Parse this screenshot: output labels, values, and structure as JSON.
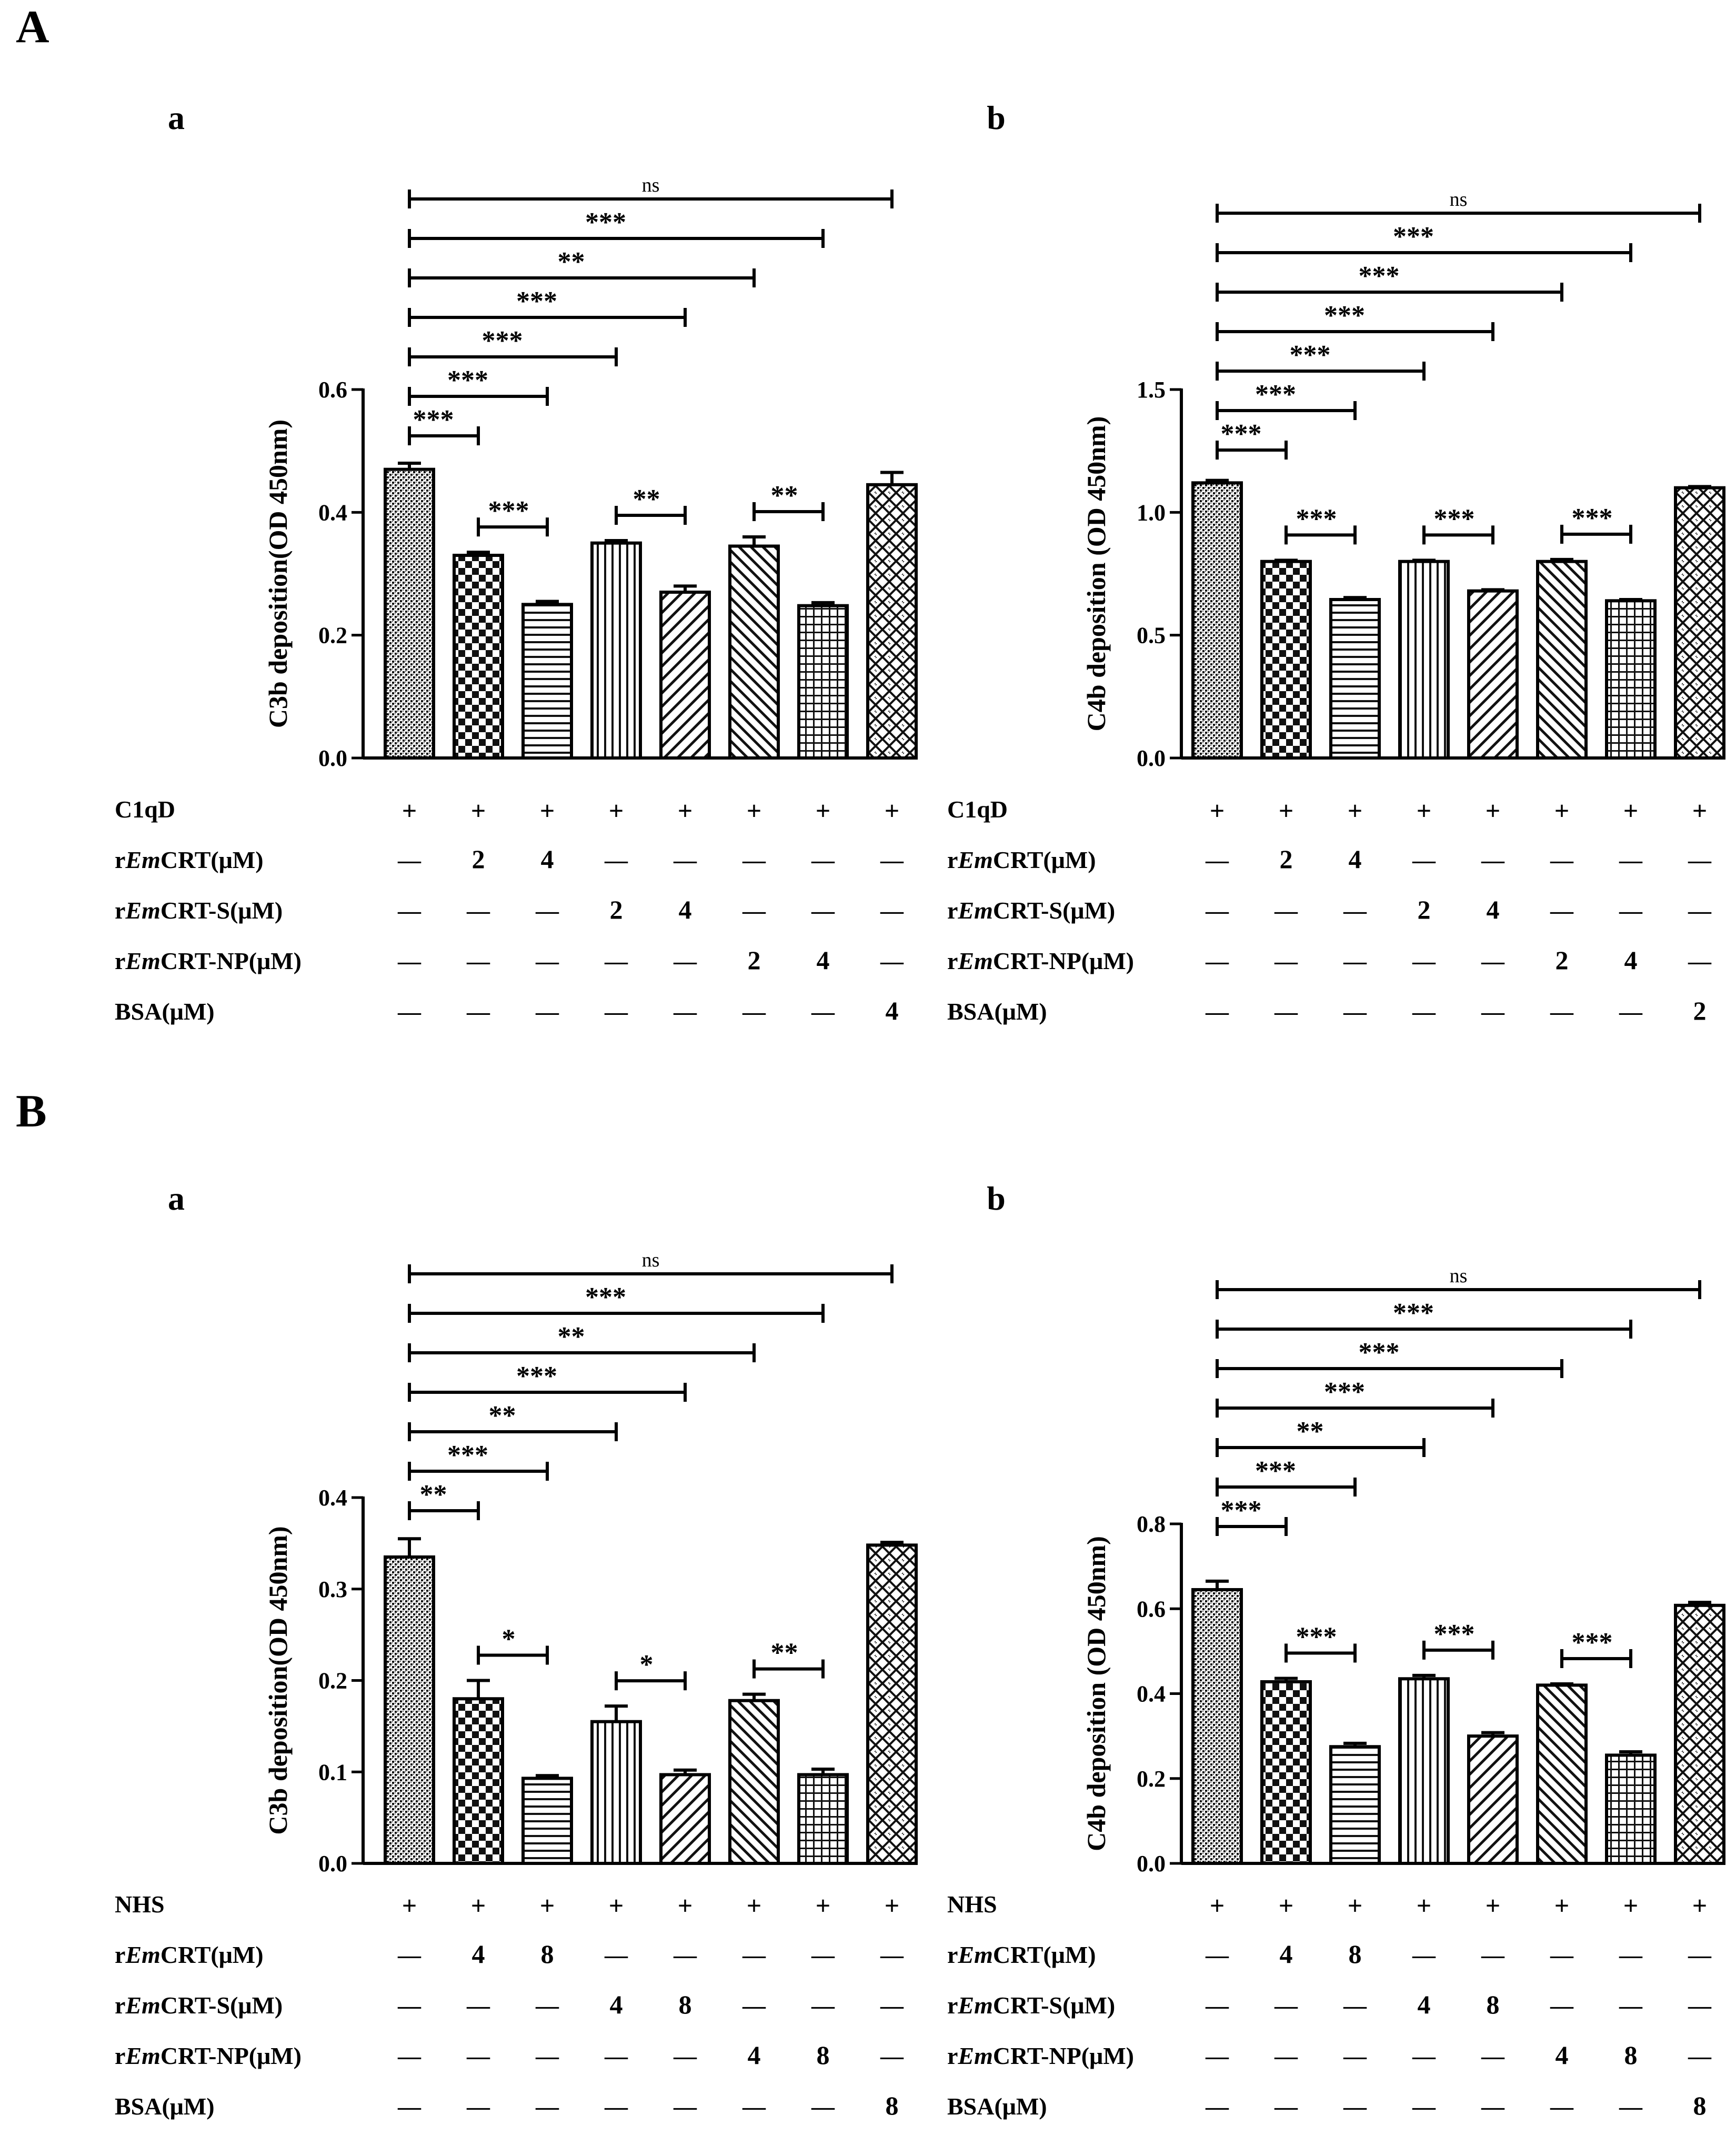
{
  "labels": {
    "A": "A",
    "B": "B",
    "a": "a",
    "b": "b",
    "plus": "+",
    "dash": "—"
  },
  "patterns": [
    "dots",
    "checker",
    "hlines",
    "vlines",
    "diag",
    "backdiag",
    "grid",
    "zigzag"
  ],
  "chart_data": [
    {
      "id": "Aa",
      "type": "bar",
      "panel": "A",
      "sub": "a",
      "ylabel": "C3b deposition(OD 450nm)",
      "ylim": [
        0,
        0.6
      ],
      "yticks": [
        "0.0",
        "0.2",
        "0.4",
        "0.6"
      ],
      "ytick_values": [
        0,
        0.2,
        0.4,
        0.6
      ],
      "values": [
        0.47,
        0.33,
        0.25,
        0.35,
        0.27,
        0.345,
        0.248,
        0.445
      ],
      "errors": [
        0.01,
        0.005,
        0.005,
        0.004,
        0.01,
        0.015,
        0.005,
        0.02
      ],
      "brackets": [
        {
          "from": 0,
          "to": 1,
          "label": "***"
        },
        {
          "from": 0,
          "to": 2,
          "label": "***"
        },
        {
          "from": 0,
          "to": 3,
          "label": "***"
        },
        {
          "from": 0,
          "to": 4,
          "label": "***"
        },
        {
          "from": 0,
          "to": 5,
          "label": "**"
        },
        {
          "from": 0,
          "to": 6,
          "label": "***"
        },
        {
          "from": 0,
          "to": 7,
          "label": "ns"
        }
      ],
      "pair_brackets": [
        {
          "from": 1,
          "to": 2,
          "label": "***"
        },
        {
          "from": 3,
          "to": 4,
          "label": "**"
        },
        {
          "from": 5,
          "to": 6,
          "label": "**"
        }
      ],
      "conditions": [
        {
          "label": "C1qD",
          "italic": "",
          "rest": "",
          "cells": [
            "+",
            "+",
            "+",
            "+",
            "+",
            "+",
            "+",
            "+"
          ]
        },
        {
          "label": "r",
          "italic": "Em",
          "rest": "CRT(μM)",
          "cells": [
            "—",
            "2",
            "4",
            "—",
            "—",
            "—",
            "—",
            "—"
          ]
        },
        {
          "label": "r",
          "italic": "Em",
          "rest": "CRT-S(μM)",
          "cells": [
            "—",
            "—",
            "—",
            "2",
            "4",
            "—",
            "—",
            "—"
          ]
        },
        {
          "label": "r",
          "italic": "Em",
          "rest": "CRT-NP(μM)",
          "cells": [
            "—",
            "—",
            "—",
            "—",
            "—",
            "2",
            "4",
            "—"
          ]
        },
        {
          "label": "BSA(μM)",
          "italic": "",
          "rest": "",
          "cells": [
            "—",
            "—",
            "—",
            "—",
            "—",
            "—",
            "—",
            "4"
          ]
        }
      ]
    },
    {
      "id": "Ab",
      "type": "bar",
      "panel": "",
      "sub": "b",
      "ylabel": "C4b deposition (OD 450nm)",
      "ylim": [
        0,
        1.5
      ],
      "yticks": [
        "0.0",
        "0.5",
        "1.0",
        "1.5"
      ],
      "ytick_values": [
        0,
        0.5,
        1.0,
        1.5
      ],
      "values": [
        1.12,
        0.8,
        0.645,
        0.8,
        0.68,
        0.8,
        0.64,
        1.1
      ],
      "errors": [
        0.01,
        0.005,
        0.008,
        0.005,
        0.005,
        0.008,
        0.005,
        0.005
      ],
      "brackets": [
        {
          "from": 0,
          "to": 1,
          "label": "***"
        },
        {
          "from": 0,
          "to": 2,
          "label": "***"
        },
        {
          "from": 0,
          "to": 3,
          "label": "***"
        },
        {
          "from": 0,
          "to": 4,
          "label": "***"
        },
        {
          "from": 0,
          "to": 5,
          "label": "***"
        },
        {
          "from": 0,
          "to": 6,
          "label": "***"
        },
        {
          "from": 0,
          "to": 7,
          "label": "ns"
        }
      ],
      "pair_brackets": [
        {
          "from": 1,
          "to": 2,
          "label": "***"
        },
        {
          "from": 3,
          "to": 4,
          "label": "***"
        },
        {
          "from": 5,
          "to": 6,
          "label": "***"
        }
      ],
      "conditions": [
        {
          "label": "C1qD",
          "italic": "",
          "rest": "",
          "cells": [
            "+",
            "+",
            "+",
            "+",
            "+",
            "+",
            "+",
            "+"
          ]
        },
        {
          "label": "r",
          "italic": "Em",
          "rest": "CRT(μM)",
          "cells": [
            "—",
            "2",
            "4",
            "—",
            "—",
            "—",
            "—",
            "—"
          ]
        },
        {
          "label": "r",
          "italic": "Em",
          "rest": "CRT-S(μM)",
          "cells": [
            "—",
            "—",
            "—",
            "2",
            "4",
            "—",
            "—",
            "—"
          ]
        },
        {
          "label": "r",
          "italic": "Em",
          "rest": "CRT-NP(μM)",
          "cells": [
            "—",
            "—",
            "—",
            "—",
            "—",
            "2",
            "4",
            "—"
          ]
        },
        {
          "label": "BSA(μM)",
          "italic": "",
          "rest": "",
          "cells": [
            "—",
            "—",
            "—",
            "—",
            "—",
            "—",
            "—",
            "2"
          ]
        }
      ]
    },
    {
      "id": "Ba",
      "type": "bar",
      "panel": "B",
      "sub": "a",
      "ylabel": "C3b deposition(OD 450nm)",
      "ylim": [
        0,
        0.4
      ],
      "yticks": [
        "0.0",
        "0.1",
        "0.2",
        "0.3",
        "0.4"
      ],
      "ytick_values": [
        0,
        0.1,
        0.2,
        0.3,
        0.4
      ],
      "values": [
        0.335,
        0.18,
        0.093,
        0.155,
        0.097,
        0.178,
        0.097,
        0.348
      ],
      "errors": [
        0.02,
        0.02,
        0.003,
        0.017,
        0.005,
        0.007,
        0.006,
        0.003
      ],
      "brackets": [
        {
          "from": 0,
          "to": 1,
          "label": "**"
        },
        {
          "from": 0,
          "to": 2,
          "label": "***"
        },
        {
          "from": 0,
          "to": 3,
          "label": "**"
        },
        {
          "from": 0,
          "to": 4,
          "label": "***"
        },
        {
          "from": 0,
          "to": 5,
          "label": "**"
        },
        {
          "from": 0,
          "to": 6,
          "label": "***"
        },
        {
          "from": 0,
          "to": 7,
          "label": "ns"
        }
      ],
      "pair_brackets": [
        {
          "from": 1,
          "to": 2,
          "label": "*"
        },
        {
          "from": 3,
          "to": 4,
          "label": "*"
        },
        {
          "from": 5,
          "to": 6,
          "label": "**"
        }
      ],
      "conditions": [
        {
          "label": "NHS",
          "italic": "",
          "rest": "",
          "cells": [
            "+",
            "+",
            "+",
            "+",
            "+",
            "+",
            "+",
            "+"
          ]
        },
        {
          "label": "r",
          "italic": "Em",
          "rest": "CRT(μM)",
          "cells": [
            "—",
            "4",
            "8",
            "—",
            "—",
            "—",
            "—",
            "—"
          ]
        },
        {
          "label": "r",
          "italic": "Em",
          "rest": "CRT-S(μM)",
          "cells": [
            "—",
            "—",
            "—",
            "4",
            "8",
            "—",
            "—",
            "—"
          ]
        },
        {
          "label": "r",
          "italic": "Em",
          "rest": "CRT-NP(μM)",
          "cells": [
            "—",
            "—",
            "—",
            "—",
            "—",
            "4",
            "8",
            "—"
          ]
        },
        {
          "label": "BSA(μM)",
          "italic": "",
          "rest": "",
          "cells": [
            "—",
            "—",
            "—",
            "—",
            "—",
            "—",
            "—",
            "8"
          ]
        }
      ]
    },
    {
      "id": "Bb",
      "type": "bar",
      "panel": "",
      "sub": "b",
      "ylabel": "C4b deposition (OD 450nm)",
      "ylim": [
        0,
        0.8
      ],
      "yticks": [
        "0.0",
        "0.2",
        "0.4",
        "0.6",
        "0.8"
      ],
      "ytick_values": [
        0,
        0.2,
        0.4,
        0.6,
        0.8
      ],
      "values": [
        0.645,
        0.428,
        0.275,
        0.435,
        0.3,
        0.42,
        0.255,
        0.608
      ],
      "errors": [
        0.02,
        0.008,
        0.008,
        0.008,
        0.008,
        0.003,
        0.008,
        0.007
      ],
      "brackets": [
        {
          "from": 0,
          "to": 1,
          "label": "***"
        },
        {
          "from": 0,
          "to": 2,
          "label": "***"
        },
        {
          "from": 0,
          "to": 3,
          "label": "**"
        },
        {
          "from": 0,
          "to": 4,
          "label": "***"
        },
        {
          "from": 0,
          "to": 5,
          "label": "***"
        },
        {
          "from": 0,
          "to": 6,
          "label": "***"
        },
        {
          "from": 0,
          "to": 7,
          "label": "ns"
        }
      ],
      "pair_brackets": [
        {
          "from": 1,
          "to": 2,
          "label": "***"
        },
        {
          "from": 3,
          "to": 4,
          "label": "***"
        },
        {
          "from": 5,
          "to": 6,
          "label": "***"
        }
      ],
      "conditions": [
        {
          "label": "NHS",
          "italic": "",
          "rest": "",
          "cells": [
            "+",
            "+",
            "+",
            "+",
            "+",
            "+",
            "+",
            "+"
          ]
        },
        {
          "label": "r",
          "italic": "Em",
          "rest": "CRT(μM)",
          "cells": [
            "—",
            "4",
            "8",
            "—",
            "—",
            "—",
            "—",
            "—"
          ]
        },
        {
          "label": "r",
          "italic": "Em",
          "rest": "CRT-S(μM)",
          "cells": [
            "—",
            "—",
            "—",
            "4",
            "8",
            "—",
            "—",
            "—"
          ]
        },
        {
          "label": "r",
          "italic": "Em",
          "rest": "CRT-NP(μM)",
          "cells": [
            "—",
            "—",
            "—",
            "—",
            "—",
            "4",
            "8",
            "—"
          ]
        },
        {
          "label": "BSA(μM)",
          "italic": "",
          "rest": "",
          "cells": [
            "—",
            "—",
            "—",
            "—",
            "—",
            "—",
            "—",
            "8"
          ]
        }
      ]
    }
  ]
}
